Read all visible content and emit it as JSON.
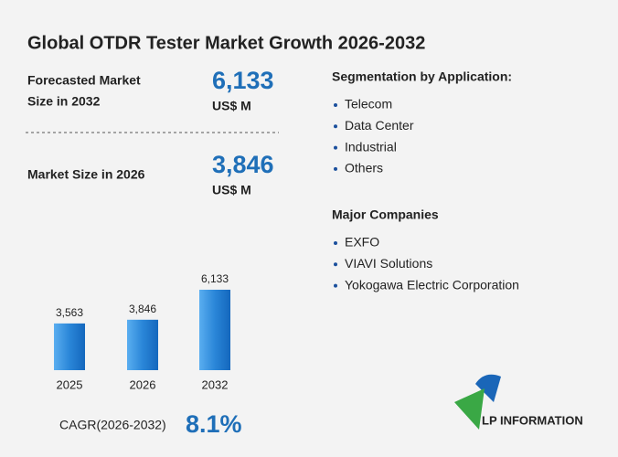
{
  "title": "Global OTDR Tester Market Growth 2026-2032",
  "forecast": {
    "label_line1": "Forecasted Market",
    "label_line2": "Size in 2032",
    "value": "6,133",
    "unit": "US$ M"
  },
  "current": {
    "label": "Market Size in 2026",
    "value": "3,846",
    "unit": "US$ M"
  },
  "segmentation": {
    "title": "Segmentation by Application:",
    "items": [
      "Telecom",
      "Data Center",
      "Industrial",
      "Others"
    ]
  },
  "companies": {
    "title": "Major Companies",
    "items": [
      "EXFO",
      "VIAVI Solutions",
      "Yokogawa Electric Corporation"
    ]
  },
  "cagr": {
    "label": "CAGR(2026-2032)",
    "value": "8.1%"
  },
  "logo": {
    "text": "LP INFORMATION"
  },
  "chart_data": {
    "type": "bar",
    "categories": [
      "2025",
      "2026",
      "2032"
    ],
    "values": [
      3563,
      3846,
      6133
    ],
    "value_labels": [
      "3,563",
      "3,846",
      "6,133"
    ],
    "color": "#2a86d8"
  }
}
